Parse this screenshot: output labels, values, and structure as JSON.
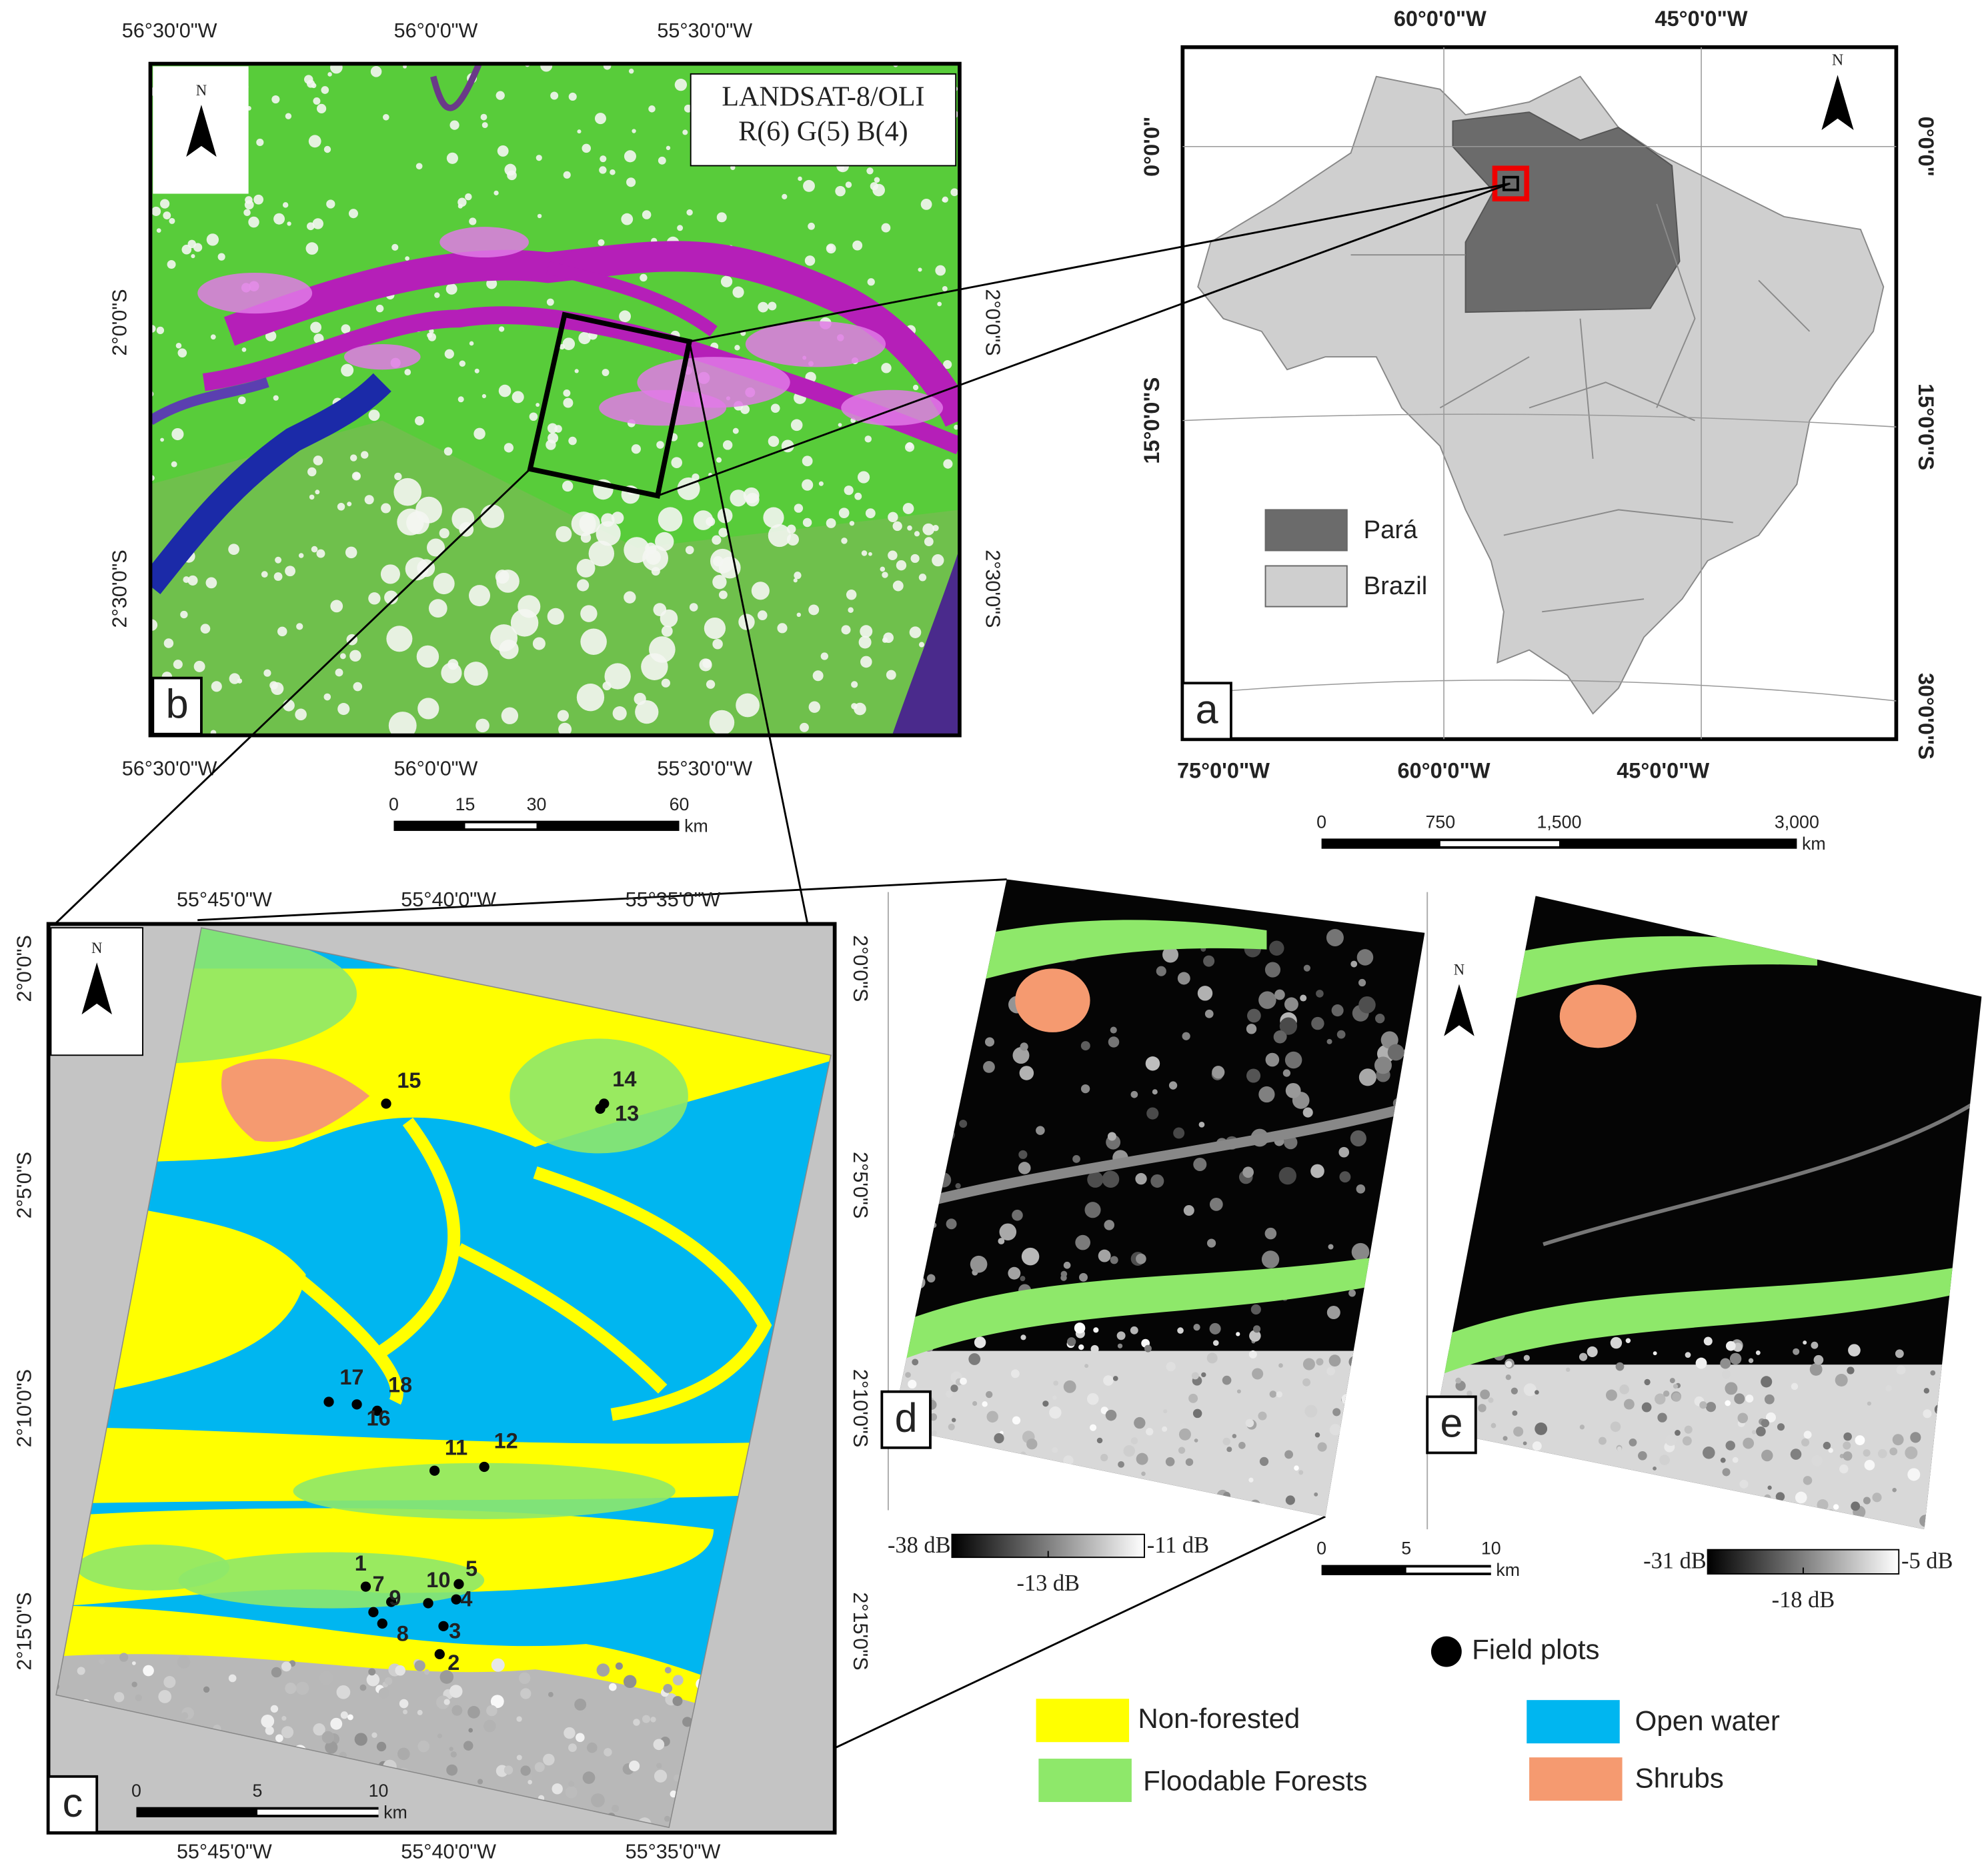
{
  "panel_a": {
    "label": "a",
    "north": "N",
    "top_ticks": [
      "60°0'0\"W",
      "45°0'0\"W"
    ],
    "bottom_ticks": [
      "75°0'0\"W",
      "60°0'0\"W",
      "45°0'0\"W"
    ],
    "left_ticks": [
      "0°0'0\"",
      "15°0'0\"S"
    ],
    "right_ticks": [
      "0°0'0\"",
      "15°0'0\"S",
      "30°0'0\"S"
    ],
    "legend": [
      {
        "name": "Pará",
        "color": "#6b6b6b"
      },
      {
        "name": "Brazil",
        "color": "#cfcfcf"
      }
    ],
    "scale_ticks": [
      "0",
      "750",
      "1,500",
      "3,000"
    ],
    "scale_unit": "km"
  },
  "panel_b": {
    "label": "b",
    "north": "N",
    "title_lines": [
      "LANDSAT-8/OLI",
      "R(6) G(5) B(4)"
    ],
    "top_ticks": [
      "56°30'0\"W",
      "56°0'0\"W",
      "55°30'0\"W"
    ],
    "bottom_ticks": [
      "56°30'0\"W",
      "56°0'0\"W",
      "55°30'0\"W"
    ],
    "left_ticks": [
      "2°0'0\"S",
      "2°30'0\"S"
    ],
    "right_ticks": [
      "2°0'0\"S",
      "2°30'0\"S"
    ],
    "scale_ticks": [
      "0",
      "15",
      "30",
      "60"
    ],
    "scale_unit": "km"
  },
  "panel_c": {
    "label": "c",
    "north": "N",
    "top_ticks": [
      "55°45'0\"W",
      "55°40'0\"W",
      "55°35'0\"W"
    ],
    "bottom_ticks": [
      "55°45'0\"W",
      "55°40'0\"W",
      "55°35'0\"W"
    ],
    "left_ticks": [
      "2°0'0\"S",
      "2°5'0\"S",
      "2°10'0\"S",
      "2°15'0\"S"
    ],
    "right_ticks": [
      "2°0'0\"S",
      "2°5'0\"S",
      "2°10'0\"S",
      "2°15'0\"S"
    ],
    "field_plots": [
      "1",
      "2",
      "3",
      "4",
      "5",
      "7",
      "8",
      "9",
      "10",
      "11",
      "12",
      "13",
      "14",
      "15",
      "16",
      "17",
      "18"
    ],
    "scale_ticks": [
      "0",
      "5",
      "10"
    ],
    "scale_unit": "km"
  },
  "panel_d": {
    "label": "d",
    "colorbar_min": "-38 dB",
    "colorbar_max": "-11 dB",
    "colorbar_mid": "-13 dB"
  },
  "panel_e": {
    "label": "e",
    "north": "N",
    "colorbar_min": "-31 dB",
    "colorbar_max": "-5 dB",
    "colorbar_mid": "-18 dB"
  },
  "scale_de": {
    "ticks": [
      "0",
      "5",
      "10"
    ],
    "unit": "km"
  },
  "legend": {
    "field_plots": "Field plots",
    "classes": [
      {
        "name": "Non-forested",
        "color": "#ffff00"
      },
      {
        "name": "Floodable Forests",
        "color": "#8ee86a"
      },
      {
        "name": "Open water",
        "color": "#00b6f0"
      },
      {
        "name": "Shrubs",
        "color": "#f59a70"
      }
    ]
  }
}
